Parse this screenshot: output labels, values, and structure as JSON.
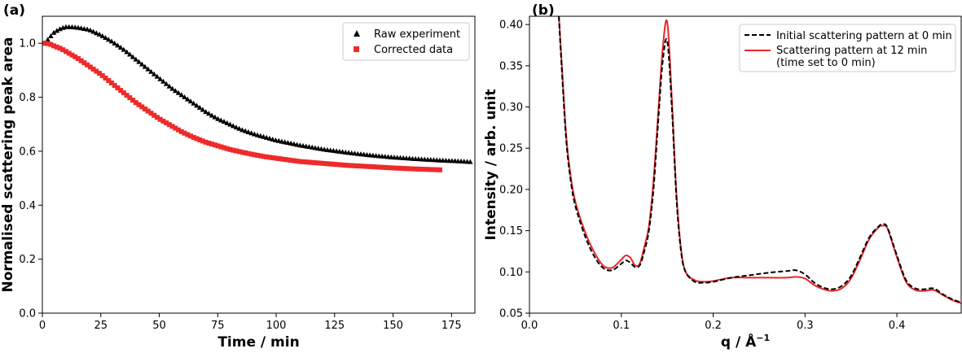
{
  "chart_data": [
    {
      "panel_label": "(a)",
      "type": "scatter",
      "xlabel": "Time / min",
      "ylabel": "Normalised scattering peak area",
      "xlim": [
        0,
        185
      ],
      "ylim": [
        0.0,
        1.1
      ],
      "xticks": [
        0,
        25,
        50,
        75,
        100,
        125,
        150,
        175
      ],
      "yticks": [
        0.0,
        0.2,
        0.4,
        0.6,
        0.8,
        1.0
      ],
      "xtick_labels": [
        "0",
        "25",
        "50",
        "75",
        "100",
        "125",
        "150",
        "175"
      ],
      "ytick_labels": [
        "0.0",
        "0.2",
        "0.4",
        "0.6",
        "0.8",
        "1.0"
      ],
      "grid": false,
      "legend_position": "top-right",
      "series": [
        {
          "name": "Raw experiment",
          "marker": "triangle",
          "color": "#000000",
          "x": [
            1,
            3,
            5,
            8,
            10,
            12,
            15,
            20,
            25,
            30,
            35,
            40,
            45,
            50,
            55,
            60,
            65,
            70,
            75,
            80,
            85,
            90,
            95,
            100,
            110,
            120,
            130,
            140,
            150,
            160,
            170,
            180,
            183
          ],
          "y": [
            1.0,
            1.02,
            1.04,
            1.055,
            1.06,
            1.06,
            1.058,
            1.05,
            1.03,
            1.005,
            0.975,
            0.94,
            0.905,
            0.87,
            0.835,
            0.805,
            0.775,
            0.745,
            0.72,
            0.7,
            0.68,
            0.665,
            0.652,
            0.64,
            0.622,
            0.607,
            0.595,
            0.585,
            0.577,
            0.571,
            0.566,
            0.562,
            0.56
          ]
        },
        {
          "name": "Corrected data",
          "marker": "square",
          "color": "#ee2a2a",
          "x": [
            1,
            3,
            5,
            8,
            10,
            15,
            20,
            25,
            30,
            35,
            40,
            45,
            50,
            55,
            60,
            65,
            70,
            75,
            80,
            85,
            90,
            95,
            100,
            110,
            120,
            130,
            140,
            150,
            160,
            170
          ],
          "y": [
            1.0,
            0.998,
            0.99,
            0.98,
            0.97,
            0.945,
            0.915,
            0.885,
            0.85,
            0.815,
            0.78,
            0.75,
            0.72,
            0.695,
            0.67,
            0.65,
            0.633,
            0.62,
            0.607,
            0.597,
            0.588,
            0.58,
            0.574,
            0.562,
            0.555,
            0.548,
            0.543,
            0.538,
            0.534,
            0.531
          ]
        }
      ]
    },
    {
      "panel_label": "(b)",
      "type": "line",
      "xlabel": "q / Å",
      "xlabel_superscript": "−1",
      "ylabel": "Intensity / arb. unit",
      "xlim": [
        0.0,
        0.47
      ],
      "ylim": [
        0.05,
        0.41
      ],
      "xticks": [
        0.0,
        0.1,
        0.2,
        0.3,
        0.4
      ],
      "yticks": [
        0.05,
        0.1,
        0.15,
        0.2,
        0.25,
        0.3,
        0.35,
        0.4
      ],
      "xtick_labels": [
        "0.0",
        "0.1",
        "0.2",
        "0.3",
        "0.4"
      ],
      "ytick_labels": [
        "0.05",
        "0.10",
        "0.15",
        "0.20",
        "0.25",
        "0.30",
        "0.35",
        "0.40"
      ],
      "grid": false,
      "legend_position": "top-right",
      "series": [
        {
          "name": "Initial scattering pattern at 0 min",
          "style": "dashed",
          "color": "#000000",
          "x": [
            0.032,
            0.035,
            0.04,
            0.045,
            0.05,
            0.06,
            0.07,
            0.08,
            0.09,
            0.1,
            0.105,
            0.11,
            0.115,
            0.12,
            0.125,
            0.13,
            0.135,
            0.14,
            0.145,
            0.15,
            0.155,
            0.16,
            0.165,
            0.17,
            0.18,
            0.19,
            0.2,
            0.22,
            0.24,
            0.26,
            0.28,
            0.29,
            0.3,
            0.31,
            0.32,
            0.33,
            0.34,
            0.35,
            0.36,
            0.37,
            0.38,
            0.385,
            0.39,
            0.4,
            0.41,
            0.42,
            0.43,
            0.44,
            0.45,
            0.46,
            0.47
          ],
          "y": [
            0.41,
            0.35,
            0.26,
            0.21,
            0.18,
            0.145,
            0.12,
            0.105,
            0.102,
            0.11,
            0.114,
            0.111,
            0.106,
            0.108,
            0.125,
            0.15,
            0.2,
            0.28,
            0.355,
            0.38,
            0.3,
            0.19,
            0.125,
            0.1,
            0.088,
            0.087,
            0.088,
            0.093,
            0.096,
            0.099,
            0.101,
            0.102,
            0.097,
            0.087,
            0.081,
            0.079,
            0.083,
            0.095,
            0.118,
            0.142,
            0.155,
            0.158,
            0.153,
            0.12,
            0.09,
            0.08,
            0.079,
            0.08,
            0.073,
            0.067,
            0.063
          ]
        },
        {
          "name": "Scattering pattern at 12 min",
          "name_line2": "(time set to 0 min)",
          "style": "solid",
          "color": "#e8262a",
          "x": [
            0.032,
            0.035,
            0.04,
            0.045,
            0.05,
            0.06,
            0.07,
            0.08,
            0.09,
            0.1,
            0.105,
            0.11,
            0.115,
            0.12,
            0.125,
            0.13,
            0.135,
            0.14,
            0.145,
            0.15,
            0.155,
            0.16,
            0.165,
            0.17,
            0.18,
            0.19,
            0.2,
            0.22,
            0.24,
            0.26,
            0.28,
            0.29,
            0.3,
            0.31,
            0.32,
            0.33,
            0.34,
            0.35,
            0.36,
            0.37,
            0.38,
            0.385,
            0.39,
            0.4,
            0.41,
            0.42,
            0.43,
            0.44,
            0.45,
            0.46,
            0.47
          ],
          "y": [
            0.41,
            0.355,
            0.265,
            0.215,
            0.185,
            0.15,
            0.125,
            0.108,
            0.105,
            0.115,
            0.12,
            0.117,
            0.108,
            0.11,
            0.13,
            0.155,
            0.21,
            0.29,
            0.37,
            0.403,
            0.31,
            0.195,
            0.128,
            0.1,
            0.09,
            0.088,
            0.089,
            0.093,
            0.093,
            0.093,
            0.093,
            0.094,
            0.092,
            0.084,
            0.079,
            0.077,
            0.08,
            0.092,
            0.115,
            0.14,
            0.154,
            0.156,
            0.152,
            0.118,
            0.088,
            0.078,
            0.077,
            0.078,
            0.072,
            0.066,
            0.062
          ]
        }
      ]
    }
  ]
}
